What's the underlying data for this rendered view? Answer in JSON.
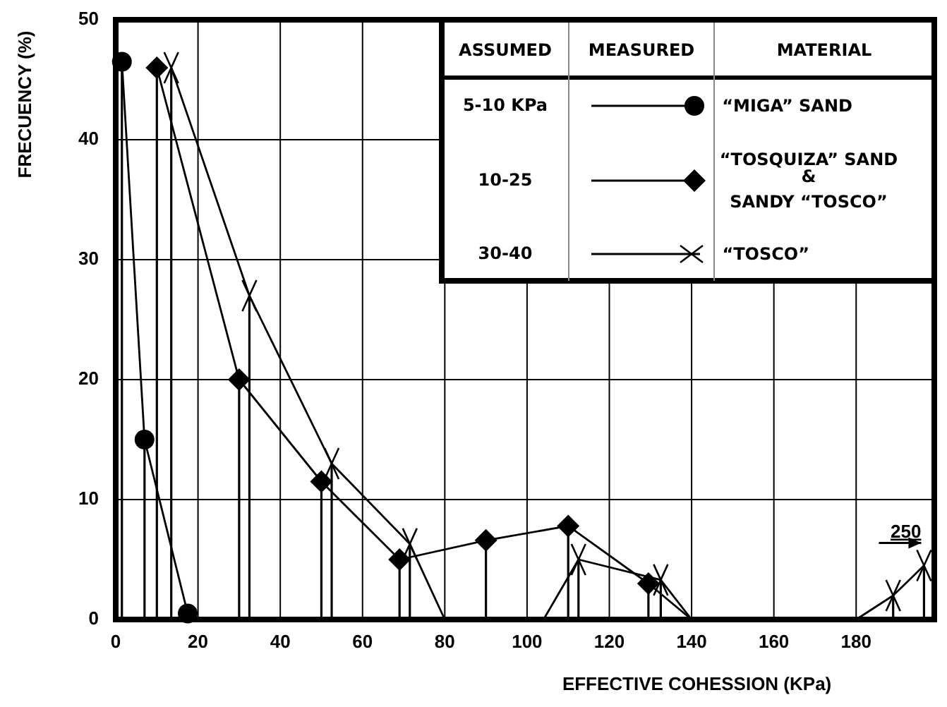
{
  "chart_data": {
    "type": "line",
    "xlabel": "EFFECTIVE COHESSION (KPa)",
    "ylabel": "FRECUENCY (%)",
    "xlim": [
      0,
      199
    ],
    "ylim": [
      0,
      50
    ],
    "xticks": [
      0,
      20,
      40,
      60,
      80,
      100,
      120,
      140,
      160,
      180
    ],
    "yticks": [
      0,
      10,
      20,
      30,
      40,
      50
    ],
    "grid": true,
    "legend": "top right",
    "series": [
      {
        "name": "“MIGA” SAND",
        "color": "#000000",
        "marker": "circle",
        "x": [
          1.5,
          7,
          17.5
        ],
        "values": [
          46.5,
          15,
          0.5
        ],
        "errors": [
          [
            0,
            46.5
          ],
          [
            0,
            15
          ],
          [
            0,
            0.5
          ]
        ]
      },
      {
        "name": "“TOSQUIZA” SAND\n&\nSANDY “TOSCO”",
        "color": "#000000",
        "marker": "diamond",
        "x": [
          10,
          30,
          50,
          69,
          90,
          110,
          129.5,
          140
        ],
        "values": [
          46,
          20,
          11.5,
          5,
          6.6,
          7.8,
          3,
          0
        ],
        "errors": [
          [
            0,
            46
          ],
          [
            0,
            20
          ],
          [
            0,
            11.5
          ],
          [
            0,
            5
          ],
          [
            0,
            6.6
          ],
          [
            0,
            7.8
          ],
          [
            0,
            3
          ],
          null
        ]
      },
      {
        "name": "“TOSCO”",
        "color": "#000000",
        "marker": "cross",
        "x": [
          13.5,
          32.5,
          52.5,
          71.5,
          80,
          104,
          112.5,
          132.5,
          140,
          180,
          189,
          196.5
        ],
        "values": [
          46,
          27,
          13,
          6.3,
          0,
          0,
          5,
          3.3,
          0,
          0,
          2,
          4.5
        ],
        "errors": [
          [
            0,
            46
          ],
          [
            0,
            27
          ],
          [
            0,
            13
          ],
          [
            0,
            6.3
          ],
          null,
          null,
          [
            0,
            5
          ],
          [
            0,
            3.3
          ],
          null,
          null,
          [
            0,
            2
          ],
          [
            0,
            4.5
          ]
        ]
      }
    ],
    "annotations": [
      "ASSUMED",
      "MEASURED",
      "MATERIAL",
      "5-10 KPa",
      "10-25",
      "30-40",
      {
        "text": "250",
        "x": 196.5,
        "y": 4.5
      }
    ]
  }
}
